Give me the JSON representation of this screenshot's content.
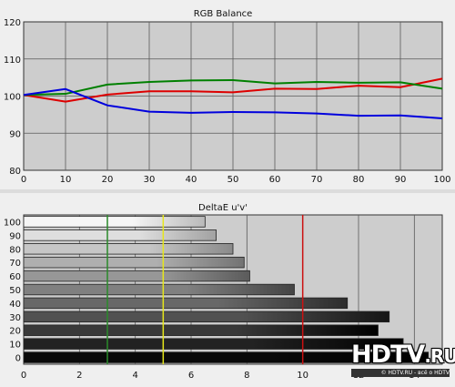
{
  "chart_data": [
    {
      "type": "line",
      "title": "RGB Balance",
      "xlabel": "",
      "ylabel": "",
      "x": [
        0,
        10,
        20,
        30,
        40,
        50,
        60,
        70,
        80,
        90,
        100
      ],
      "xlim": [
        0,
        100
      ],
      "ylim": [
        80,
        120
      ],
      "x_ticks": [
        0,
        10,
        20,
        30,
        40,
        50,
        60,
        70,
        80,
        90,
        100
      ],
      "y_ticks": [
        80,
        90,
        100,
        110,
        120
      ],
      "grid": true,
      "series": [
        {
          "color": "#dd0000",
          "values": [
            100.3,
            98.5,
            100.4,
            101.3,
            101.3,
            101.0,
            102.0,
            101.9,
            102.8,
            102.4,
            104.7
          ]
        },
        {
          "color": "#008000",
          "values": [
            100.3,
            100.6,
            103.1,
            103.8,
            104.2,
            104.3,
            103.4,
            103.8,
            103.6,
            103.7,
            102.0
          ]
        },
        {
          "color": "#0000dd",
          "values": [
            100.3,
            101.9,
            97.5,
            95.8,
            95.5,
            95.7,
            95.6,
            95.3,
            94.7,
            94.8,
            94.0
          ]
        }
      ]
    },
    {
      "type": "bar",
      "orientation": "horizontal",
      "title": "DeltaE u'v'",
      "xlabel": "",
      "ylabel": "",
      "categories": [
        "0",
        "10",
        "20",
        "30",
        "40",
        "50",
        "60",
        "70",
        "80",
        "90",
        "100"
      ],
      "values": [
        14.5,
        13.6,
        12.7,
        13.1,
        11.6,
        9.7,
        8.1,
        7.9,
        7.5,
        6.9,
        6.5
      ],
      "xlim": [
        0,
        15
      ],
      "x_ticks": [
        0,
        2,
        4,
        6,
        8,
        10,
        12,
        14
      ],
      "grid": true,
      "threshold_lines": [
        {
          "value": 3,
          "color": "#2a8a2a"
        },
        {
          "value": 5,
          "color": "#e6e61a"
        },
        {
          "value": 10,
          "color": "#cc1111"
        }
      ]
    }
  ],
  "watermark": {
    "text": "HDTV",
    "suffix": ".RU",
    "tagline": "© HDTV.RU - всё о HDTV"
  }
}
